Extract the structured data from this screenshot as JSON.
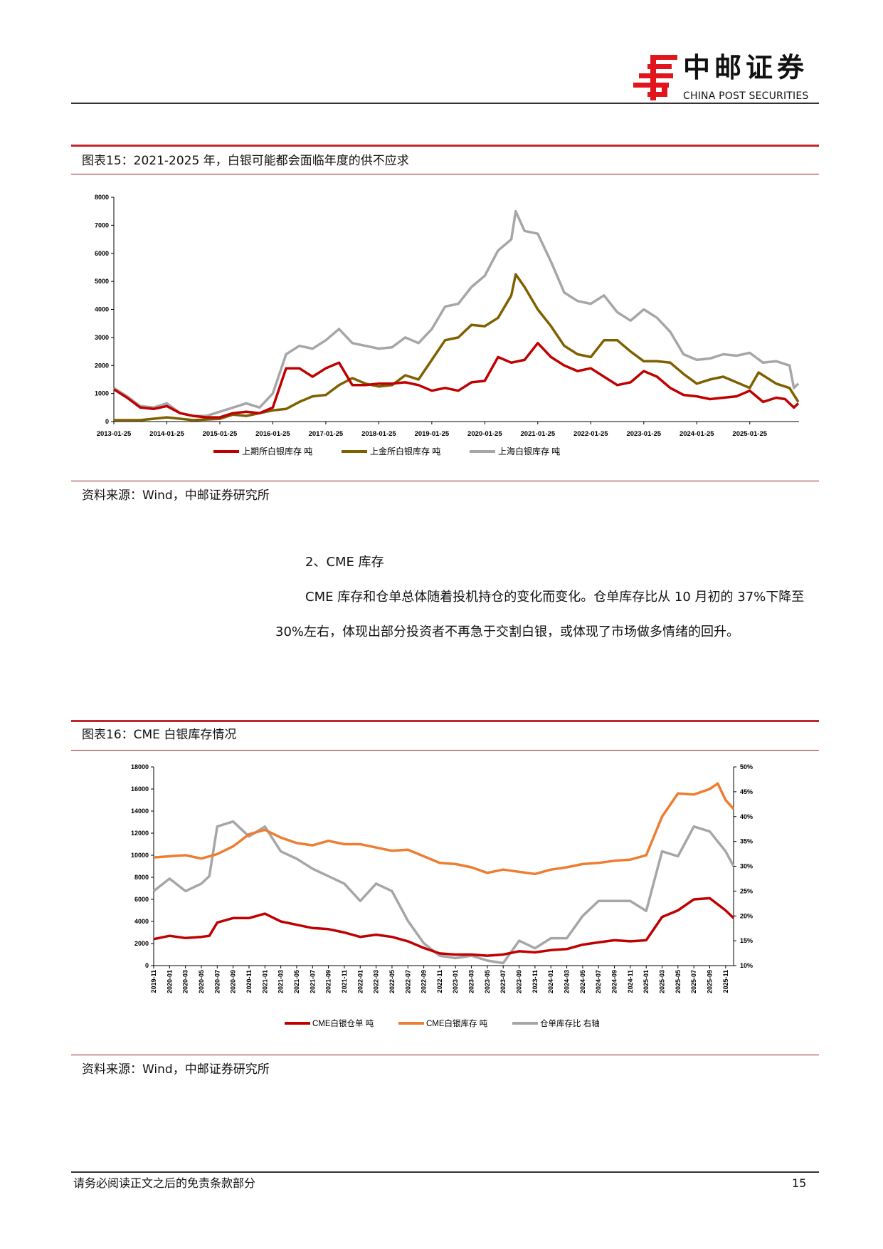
{
  "header": {
    "logo_cn": "中邮证券",
    "logo_en": "CHINA POST SECURITIES",
    "brand_color": "#e0151d"
  },
  "figure15": {
    "title": "图表15：2021-2025 年，白银可能都会面临年度的供不应求",
    "source": "资料来源：Wind，中邮证券研究所"
  },
  "section": {
    "heading": "2、CME 库存",
    "paragraph": "CME 库存和仓单总体随着投机持仓的变化而变化。仓单库存比从 10 月初的 37%下降至 30%左右，体现出部分投资者不再急于交割白银，或体现了市场做多情绪的回升。"
  },
  "figure16": {
    "title": "图表16：CME 白银库存情况",
    "source": "资料来源：Wind，中邮证券研究所"
  },
  "footer": {
    "disclaimer": "请务必阅读正文之后的免责条款部分",
    "page": "15"
  },
  "chart_data": [
    {
      "type": "line",
      "title": "",
      "xlabel": "",
      "ylabel": "",
      "ylim": [
        0,
        8000
      ],
      "yticks": [
        "0",
        "1000",
        "2000",
        "3000",
        "4000",
        "5000",
        "6000",
        "7000",
        "8000"
      ],
      "xticks": [
        "2013-01-25",
        "2014-01-25",
        "2015-01-25",
        "2016-01-25",
        "2017-01-25",
        "2018-01-25",
        "2019-01-25",
        "2020-01-25",
        "2021-01-25",
        "2022-01-25",
        "2023-01-25",
        "2024-01-25",
        "2025-01-25"
      ],
      "legend": "bottom",
      "grid": false,
      "series": [
        {
          "name": "上期所白银库存 吨",
          "color": "#c00000",
          "x": [
            "2013-01",
            "2013-04",
            "2013-07",
            "2013-10",
            "2014-01",
            "2014-04",
            "2014-07",
            "2014-10",
            "2015-01",
            "2015-04",
            "2015-07",
            "2015-10",
            "2016-01",
            "2016-04",
            "2016-07",
            "2016-10",
            "2017-01",
            "2017-04",
            "2017-07",
            "2017-10",
            "2018-01",
            "2018-04",
            "2018-07",
            "2018-10",
            "2019-01",
            "2019-04",
            "2019-07",
            "2019-10",
            "2020-01",
            "2020-04",
            "2020-07",
            "2020-10",
            "2021-01",
            "2021-04",
            "2021-07",
            "2021-10",
            "2022-01",
            "2022-04",
            "2022-07",
            "2022-10",
            "2023-01",
            "2023-04",
            "2023-07",
            "2023-10",
            "2024-01",
            "2024-04",
            "2024-07",
            "2024-10",
            "2025-01",
            "2025-04",
            "2025-07",
            "2025-09",
            "2025-11",
            "2025-12"
          ],
          "y": [
            1150,
            850,
            500,
            450,
            550,
            300,
            200,
            150,
            150,
            300,
            350,
            300,
            500,
            1900,
            1900,
            1600,
            1900,
            2100,
            1300,
            1300,
            1350,
            1350,
            1400,
            1300,
            1100,
            1200,
            1100,
            1400,
            1450,
            2300,
            2100,
            2200,
            2800,
            2300,
            2000,
            1800,
            1900,
            1600,
            1300,
            1400,
            1800,
            1600,
            1200,
            950,
            900,
            800,
            850,
            900,
            1100,
            700,
            850,
            800,
            500,
            650
          ]
        },
        {
          "name": "上金所白银库存 吨",
          "color": "#7f6000",
          "x": [
            "2013-01",
            "2013-07",
            "2014-01",
            "2014-07",
            "2015-01",
            "2015-04",
            "2015-07",
            "2015-10",
            "2016-01",
            "2016-04",
            "2016-07",
            "2016-10",
            "2017-01",
            "2017-04",
            "2017-07",
            "2017-10",
            "2018-01",
            "2018-04",
            "2018-07",
            "2018-10",
            "2019-01",
            "2019-04",
            "2019-07",
            "2019-10",
            "2020-01",
            "2020-04",
            "2020-07",
            "2020-08",
            "2020-10",
            "2021-01",
            "2021-04",
            "2021-07",
            "2021-10",
            "2022-01",
            "2022-04",
            "2022-07",
            "2022-10",
            "2023-01",
            "2023-04",
            "2023-07",
            "2023-10",
            "2024-01",
            "2024-04",
            "2024-07",
            "2024-10",
            "2025-01",
            "2025-03",
            "2025-07",
            "2025-10",
            "2025-12"
          ],
          "y": [
            50,
            50,
            150,
            50,
            100,
            250,
            200,
            300,
            400,
            450,
            700,
            900,
            950,
            1300,
            1550,
            1350,
            1250,
            1300,
            1650,
            1500,
            2200,
            2900,
            3000,
            3450,
            3400,
            3700,
            4500,
            5250,
            4800,
            4000,
            3400,
            2700,
            2400,
            2300,
            2900,
            2900,
            2500,
            2150,
            2150,
            2100,
            1700,
            1350,
            1500,
            1600,
            1400,
            1200,
            1750,
            1350,
            1200,
            700
          ]
        },
        {
          "name": "上海白银库存 吨",
          "color": "#a6a6a6",
          "x": [
            "2013-01",
            "2013-04",
            "2013-07",
            "2013-10",
            "2014-01",
            "2014-04",
            "2014-07",
            "2014-10",
            "2015-01",
            "2015-04",
            "2015-07",
            "2015-10",
            "2016-01",
            "2016-04",
            "2016-07",
            "2016-10",
            "2017-01",
            "2017-04",
            "2017-07",
            "2017-10",
            "2018-01",
            "2018-04",
            "2018-07",
            "2018-10",
            "2019-01",
            "2019-04",
            "2019-07",
            "2019-10",
            "2020-01",
            "2020-04",
            "2020-07",
            "2020-08",
            "2020-10",
            "2021-01",
            "2021-04",
            "2021-07",
            "2021-10",
            "2022-01",
            "2022-04",
            "2022-07",
            "2022-10",
            "2023-01",
            "2023-04",
            "2023-07",
            "2023-10",
            "2024-01",
            "2024-04",
            "2024-07",
            "2024-10",
            "2025-01",
            "2025-04",
            "2025-07",
            "2025-10",
            "2025-11",
            "2025-12"
          ],
          "y": [
            1200,
            900,
            550,
            500,
            650,
            300,
            200,
            200,
            350,
            500,
            650,
            500,
            1000,
            2400,
            2700,
            2600,
            2900,
            3300,
            2800,
            2700,
            2600,
            2650,
            3000,
            2800,
            3300,
            4100,
            4200,
            4800,
            5200,
            6100,
            6500,
            7500,
            6800,
            6700,
            5700,
            4600,
            4300,
            4200,
            4500,
            3900,
            3600,
            4000,
            3700,
            3200,
            2400,
            2200,
            2250,
            2400,
            2350,
            2450,
            2100,
            2150,
            2000,
            1200,
            1350
          ]
        }
      ]
    },
    {
      "type": "line",
      "title": "",
      "xlabel": "",
      "ylabel": "",
      "ylim": [
        0,
        18000
      ],
      "y2lim": [
        10,
        50
      ],
      "yticks": [
        "0",
        "2000",
        "4000",
        "6000",
        "8000",
        "10000",
        "12000",
        "14000",
        "16000",
        "18000"
      ],
      "y2ticks": [
        "10%",
        "15%",
        "20%",
        "25%",
        "30%",
        "35%",
        "40%",
        "45%",
        "50%"
      ],
      "xticks": [
        "2019-11",
        "2020-01",
        "2020-03",
        "2020-05",
        "2020-07",
        "2020-09",
        "2020-11",
        "2021-01",
        "2021-03",
        "2021-05",
        "2021-07",
        "2021-09",
        "2021-11",
        "2022-01",
        "2022-03",
        "2022-05",
        "2022-07",
        "2022-09",
        "2022-11",
        "2023-01",
        "2023-03",
        "2023-05",
        "2023-07",
        "2023-09",
        "2023-11",
        "2024-01",
        "2024-03",
        "2024-05",
        "2024-07",
        "2024-09",
        "2024-11",
        "2025-01",
        "2025-03",
        "2025-05",
        "2025-07",
        "2025-09",
        "2025-11"
      ],
      "legend": "bottom",
      "grid": false,
      "series": [
        {
          "name": "CME白银仓单 吨",
          "color": "#c00000",
          "axis": "left",
          "x": [
            "2019-11",
            "2020-01",
            "2020-03",
            "2020-05",
            "2020-06",
            "2020-07",
            "2020-09",
            "2020-11",
            "2021-01",
            "2021-03",
            "2021-05",
            "2021-07",
            "2021-09",
            "2021-11",
            "2022-01",
            "2022-03",
            "2022-05",
            "2022-07",
            "2022-09",
            "2022-11",
            "2023-01",
            "2023-03",
            "2023-05",
            "2023-07",
            "2023-09",
            "2023-11",
            "2024-01",
            "2024-03",
            "2024-05",
            "2024-07",
            "2024-09",
            "2024-11",
            "2025-01",
            "2025-03",
            "2025-05",
            "2025-07",
            "2025-09",
            "2025-11",
            "2025-12"
          ],
          "y": [
            2400,
            2700,
            2500,
            2600,
            2700,
            3900,
            4300,
            4300,
            4700,
            4000,
            3700,
            3400,
            3300,
            3000,
            2600,
            2800,
            2600,
            2200,
            1600,
            1100,
            1000,
            1000,
            900,
            1000,
            1300,
            1200,
            1400,
            1500,
            1900,
            2100,
            2300,
            2200,
            2300,
            4400,
            5000,
            6000,
            6100,
            5000,
            4300
          ]
        },
        {
          "name": "CME白银库存 吨",
          "color": "#ed7d31",
          "axis": "left",
          "x": [
            "2019-11",
            "2020-01",
            "2020-03",
            "2020-05",
            "2020-07",
            "2020-09",
            "2020-11",
            "2021-01",
            "2021-03",
            "2021-05",
            "2021-07",
            "2021-09",
            "2021-11",
            "2022-01",
            "2022-03",
            "2022-05",
            "2022-07",
            "2022-09",
            "2022-11",
            "2023-01",
            "2023-03",
            "2023-05",
            "2023-07",
            "2023-09",
            "2023-11",
            "2024-01",
            "2024-03",
            "2024-05",
            "2024-07",
            "2024-09",
            "2024-11",
            "2025-01",
            "2025-03",
            "2025-05",
            "2025-07",
            "2025-09",
            "2025-10",
            "2025-11",
            "2025-12"
          ],
          "y": [
            9800,
            9900,
            10000,
            9700,
            10100,
            10800,
            11900,
            12300,
            11600,
            11100,
            10900,
            11300,
            11000,
            11000,
            10700,
            10400,
            10500,
            9900,
            9300,
            9200,
            8900,
            8400,
            8700,
            8500,
            8300,
            8700,
            8900,
            9200,
            9300,
            9500,
            9600,
            10000,
            13500,
            15600,
            15500,
            16000,
            16500,
            15000,
            14200
          ]
        },
        {
          "name": "仓单库存比 右轴",
          "color": "#a6a6a6",
          "axis": "right",
          "x": [
            "2019-11",
            "2020-01",
            "2020-03",
            "2020-05",
            "2020-06",
            "2020-07",
            "2020-09",
            "2020-11",
            "2021-01",
            "2021-03",
            "2021-05",
            "2021-07",
            "2021-09",
            "2021-11",
            "2022-01",
            "2022-03",
            "2022-05",
            "2022-07",
            "2022-09",
            "2022-11",
            "2023-01",
            "2023-03",
            "2023-05",
            "2023-07",
            "2023-09",
            "2023-11",
            "2024-01",
            "2024-03",
            "2024-05",
            "2024-07",
            "2024-09",
            "2024-11",
            "2025-01",
            "2025-03",
            "2025-05",
            "2025-07",
            "2025-09",
            "2025-11",
            "2025-12"
          ],
          "y": [
            25,
            27.5,
            25,
            26.5,
            28,
            38,
            39,
            36,
            38,
            33,
            31.5,
            29.5,
            28,
            26.5,
            23,
            26.5,
            25,
            19,
            14.5,
            12,
            11.5,
            12,
            11,
            10.5,
            15,
            13.5,
            15.5,
            15.5,
            20,
            23,
            23,
            23,
            21,
            33,
            32,
            38,
            37,
            33,
            30
          ]
        }
      ]
    }
  ]
}
